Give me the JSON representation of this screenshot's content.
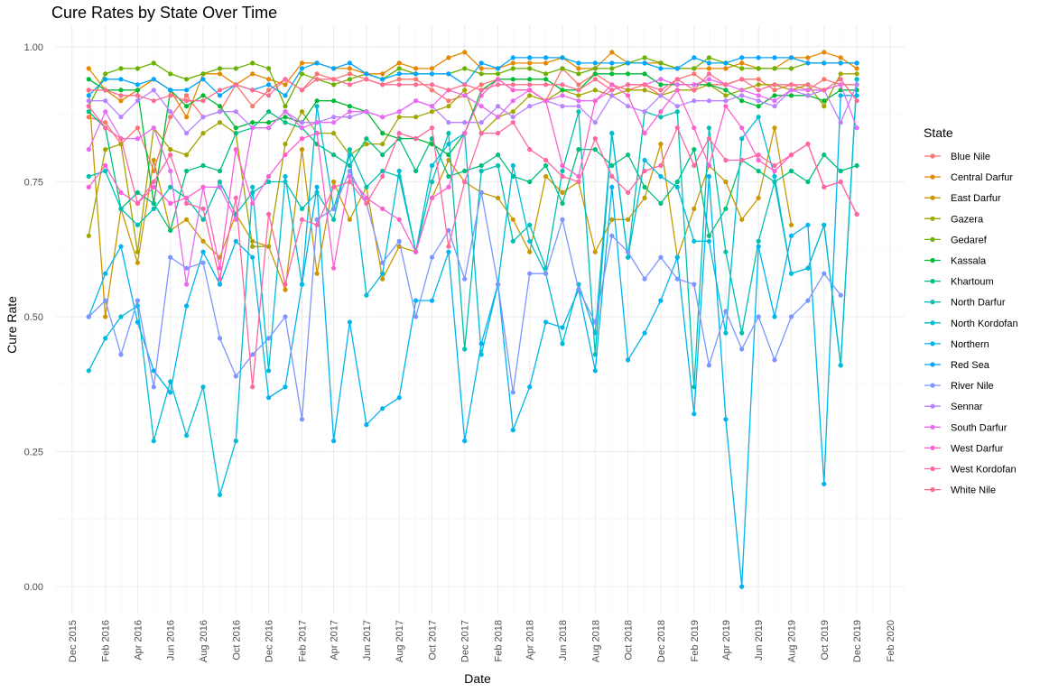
{
  "chart_data": {
    "type": "line",
    "title": "Cure Rates by State Over Time",
    "xlabel": "Date",
    "ylabel": "Cure Rate",
    "ylim": [
      -0.05,
      1.04
    ],
    "y_ticks": [
      "0.00",
      "0.25",
      "0.50",
      "0.75",
      "1.00"
    ],
    "y_tick_values": [
      0,
      0.25,
      0.5,
      0.75,
      1
    ],
    "x_range": [
      "2015-11-01",
      "2020-02-28"
    ],
    "x_ticks": [
      {
        "label": "Dec 2015",
        "date": "2015-12-01"
      },
      {
        "label": "Feb 2016",
        "date": "2016-02-01"
      },
      {
        "label": "Apr 2016",
        "date": "2016-04-01"
      },
      {
        "label": "Jun 2016",
        "date": "2016-06-01"
      },
      {
        "label": "Aug 2016",
        "date": "2016-08-01"
      },
      {
        "label": "Oct 2016",
        "date": "2016-10-01"
      },
      {
        "label": "Dec 2016",
        "date": "2016-12-01"
      },
      {
        "label": "Feb 2017",
        "date": "2017-02-01"
      },
      {
        "label": "Apr 2017",
        "date": "2017-04-01"
      },
      {
        "label": "Jun 2017",
        "date": "2017-06-01"
      },
      {
        "label": "Aug 2017",
        "date": "2017-08-01"
      },
      {
        "label": "Oct 2017",
        "date": "2017-10-01"
      },
      {
        "label": "Dec 2017",
        "date": "2017-12-01"
      },
      {
        "label": "Feb 2018",
        "date": "2018-02-01"
      },
      {
        "label": "Apr 2018",
        "date": "2018-04-01"
      },
      {
        "label": "Jun 2018",
        "date": "2018-06-01"
      },
      {
        "label": "Aug 2018",
        "date": "2018-08-01"
      },
      {
        "label": "Oct 2018",
        "date": "2018-10-01"
      },
      {
        "label": "Dec 2018",
        "date": "2018-12-01"
      },
      {
        "label": "Feb 2019",
        "date": "2019-02-01"
      },
      {
        "label": "Apr 2019",
        "date": "2019-04-01"
      },
      {
        "label": "Jun 2019",
        "date": "2019-06-01"
      },
      {
        "label": "Aug 2019",
        "date": "2019-08-01"
      },
      {
        "label": "Oct 2019",
        "date": "2019-10-01"
      },
      {
        "label": "Dec 2019",
        "date": "2019-12-01"
      },
      {
        "label": "Feb 2020",
        "date": "2020-02-01"
      }
    ],
    "grid": true,
    "legend": {
      "title": "State",
      "position": "right"
    },
    "x": [
      "2016-01-01",
      "2016-02-01",
      "2016-03-01",
      "2016-04-01",
      "2016-05-01",
      "2016-06-01",
      "2016-07-01",
      "2016-08-01",
      "2016-09-01",
      "2016-10-01",
      "2016-11-01",
      "2016-12-01",
      "2017-01-01",
      "2017-02-01",
      "2017-03-01",
      "2017-04-01",
      "2017-05-01",
      "2017-06-01",
      "2017-07-01",
      "2017-08-01",
      "2017-09-01",
      "2017-10-01",
      "2017-11-01",
      "2017-12-01",
      "2018-01-01",
      "2018-02-01",
      "2018-03-01",
      "2018-04-01",
      "2018-05-01",
      "2018-06-01",
      "2018-07-01",
      "2018-08-01",
      "2018-09-01",
      "2018-10-01",
      "2018-11-01",
      "2018-12-01",
      "2019-01-01",
      "2019-02-01",
      "2019-03-01",
      "2019-04-01",
      "2019-05-01",
      "2019-06-01",
      "2019-07-01",
      "2019-08-01",
      "2019-09-01",
      "2019-10-01",
      "2019-11-01",
      "2019-12-01"
    ],
    "series": [
      {
        "name": "Blue Nile",
        "color": "#F8766D",
        "values": [
          0.87,
          0.86,
          0.82,
          0.85,
          0.77,
          0.87,
          0.91,
          0.87,
          0.88,
          0.93,
          0.89,
          0.92,
          0.94,
          0.92,
          0.95,
          0.94,
          0.95,
          0.94,
          0.93,
          0.94,
          0.94,
          0.92,
          0.9,
          0.91,
          0.93,
          0.94,
          0.92,
          0.92,
          0.9,
          0.96,
          0.93,
          0.95,
          0.93,
          0.92,
          0.93,
          0.91,
          0.94,
          0.95,
          0.93,
          0.93,
          0.94,
          0.94,
          0.92,
          0.93,
          0.92,
          0.94,
          0.93,
          0.93
        ]
      },
      {
        "name": "Central Darfur",
        "color": "#E58700",
        "values": [
          0.96,
          0.92,
          0.9,
          0.92,
          0.94,
          0.92,
          0.87,
          0.95,
          0.95,
          0.93,
          0.95,
          0.94,
          0.93,
          0.97,
          0.97,
          0.96,
          0.96,
          0.95,
          0.95,
          0.97,
          0.96,
          0.96,
          0.98,
          0.99,
          0.96,
          0.96,
          0.97,
          0.97,
          0.97,
          0.98,
          0.96,
          0.96,
          0.99,
          0.97,
          0.97,
          0.97,
          0.96,
          0.96,
          0.96,
          0.96,
          0.97,
          0.96,
          0.96,
          0.98,
          0.98,
          0.99,
          0.98,
          0.96
        ]
      },
      {
        "name": "East Darfur",
        "color": "#C99800",
        "values": [
          0.92,
          0.5,
          0.7,
          0.6,
          0.79,
          0.66,
          0.68,
          0.64,
          0.61,
          0.69,
          0.64,
          0.63,
          0.55,
          0.81,
          0.58,
          0.75,
          0.68,
          0.74,
          0.57,
          0.63,
          0.62,
          0.72,
          0.79,
          0.75,
          0.73,
          0.72,
          0.68,
          0.62,
          0.76,
          0.73,
          0.75,
          0.62,
          0.68,
          0.68,
          0.72,
          0.82,
          0.61,
          0.7,
          0.78,
          0.75,
          0.68,
          0.72,
          0.85,
          0.67,
          null,
          null,
          null,
          null
        ]
      },
      {
        "name": "Gazera",
        "color": "#A3A500",
        "values": [
          0.65,
          0.81,
          0.82,
          0.62,
          0.85,
          0.81,
          0.8,
          0.84,
          0.86,
          0.84,
          0.63,
          0.63,
          0.82,
          0.88,
          0.84,
          0.84,
          0.8,
          0.82,
          0.82,
          0.87,
          0.87,
          0.88,
          0.89,
          0.92,
          0.84,
          0.87,
          0.88,
          0.91,
          0.9,
          0.92,
          0.91,
          0.92,
          0.91,
          0.92,
          0.92,
          0.91,
          0.92,
          0.92,
          0.93,
          0.91,
          0.92,
          0.93,
          0.93,
          0.92,
          0.93,
          0.89,
          0.95,
          0.95
        ]
      },
      {
        "name": "Gedaref",
        "color": "#6BB100",
        "values": [
          0.89,
          0.95,
          0.96,
          0.96,
          0.97,
          0.95,
          0.94,
          0.95,
          0.96,
          0.96,
          0.97,
          0.96,
          0.89,
          0.95,
          0.94,
          0.93,
          0.94,
          0.95,
          0.94,
          0.96,
          0.95,
          0.95,
          0.95,
          0.96,
          0.95,
          0.95,
          0.96,
          0.96,
          0.95,
          0.96,
          0.95,
          0.96,
          0.96,
          0.97,
          0.98,
          0.97,
          0.96,
          0.96,
          0.98,
          0.97,
          0.96,
          0.96,
          0.96,
          0.96,
          0.97,
          0.97,
          0.97,
          0.97
        ]
      },
      {
        "name": "Kassala",
        "color": "#00BA38",
        "values": [
          0.94,
          0.92,
          0.92,
          0.92,
          0.71,
          0.92,
          0.89,
          0.91,
          0.89,
          0.85,
          0.86,
          0.86,
          0.87,
          0.86,
          0.9,
          0.9,
          0.89,
          0.88,
          0.84,
          0.83,
          0.83,
          0.82,
          0.8,
          0.84,
          0.92,
          0.94,
          0.94,
          0.94,
          0.94,
          0.92,
          0.92,
          0.95,
          0.95,
          0.95,
          0.95,
          0.93,
          0.93,
          0.93,
          0.93,
          0.92,
          0.9,
          0.89,
          0.91,
          0.91,
          0.91,
          0.9,
          0.92,
          0.92
        ]
      },
      {
        "name": "Khartoum",
        "color": "#00BF7D",
        "values": [
          0.88,
          0.85,
          0.7,
          0.73,
          0.71,
          0.66,
          0.77,
          0.78,
          0.77,
          0.84,
          0.85,
          0.88,
          0.86,
          0.85,
          0.82,
          0.8,
          0.78,
          0.83,
          0.8,
          0.83,
          0.77,
          0.83,
          0.76,
          0.77,
          0.78,
          0.8,
          0.76,
          0.75,
          0.78,
          0.71,
          0.81,
          0.81,
          0.78,
          0.8,
          0.74,
          0.71,
          0.75,
          0.81,
          0.65,
          0.7,
          0.79,
          0.77,
          0.75,
          0.77,
          0.75,
          0.8,
          0.77,
          0.78
        ]
      },
      {
        "name": "North Darfur",
        "color": "#00C0B1",
        "values": [
          0.76,
          0.77,
          0.7,
          0.67,
          0.7,
          0.74,
          0.72,
          0.68,
          0.75,
          0.69,
          0.73,
          0.75,
          0.75,
          0.7,
          0.73,
          0.68,
          0.81,
          0.74,
          0.77,
          0.76,
          0.62,
          0.75,
          0.84,
          0.44,
          0.77,
          0.78,
          0.64,
          0.67,
          0.59,
          0.77,
          0.88,
          0.43,
          0.84,
          0.61,
          0.88,
          0.87,
          0.88,
          0.37,
          0.85,
          0.62,
          0.47,
          0.64,
          0.75,
          0.58,
          0.59,
          0.67,
          0.41,
          0.94
        ]
      },
      {
        "name": "North Kordofan",
        "color": "#00BCD6",
        "values": [
          0.4,
          0.46,
          0.5,
          0.52,
          0.27,
          0.38,
          0.28,
          0.37,
          0.17,
          0.27,
          0.74,
          0.4,
          0.76,
          0.56,
          0.89,
          0.7,
          0.8,
          0.54,
          0.58,
          0.77,
          0.62,
          0.78,
          0.82,
          0.84,
          0.43,
          0.56,
          0.78,
          0.64,
          0.58,
          0.45,
          0.56,
          0.47,
          0.84,
          0.61,
          0.79,
          0.76,
          0.74,
          0.64,
          0.64,
          0.47,
          0.83,
          0.87,
          0.76,
          0.58,
          0.59,
          0.67,
          0.41,
          0.94
        ]
      },
      {
        "name": "Northern",
        "color": "#00B4EF",
        "values": [
          0.5,
          0.58,
          0.63,
          0.49,
          0.4,
          0.36,
          0.52,
          0.62,
          0.56,
          0.64,
          0.61,
          0.35,
          0.37,
          0.56,
          0.74,
          0.27,
          0.49,
          0.3,
          0.33,
          0.35,
          0.53,
          0.53,
          0.62,
          0.27,
          0.45,
          0.56,
          0.29,
          0.37,
          0.49,
          0.48,
          0.55,
          0.4,
          0.74,
          0.42,
          0.47,
          0.53,
          0.61,
          0.32,
          0.76,
          0.31,
          0.0,
          0.63,
          0.5,
          0.65,
          0.67,
          0.19,
          0.91,
          0.91
        ]
      },
      {
        "name": "Red Sea",
        "color": "#00A5FF",
        "values": [
          0.91,
          0.94,
          0.94,
          0.93,
          0.94,
          0.92,
          0.92,
          0.94,
          0.91,
          0.93,
          0.92,
          0.93,
          0.91,
          0.96,
          0.97,
          0.96,
          0.97,
          0.95,
          0.94,
          0.95,
          0.95,
          0.95,
          0.95,
          0.93,
          0.97,
          0.96,
          0.98,
          0.98,
          0.98,
          0.98,
          0.97,
          0.97,
          0.97,
          0.97,
          0.97,
          0.96,
          0.96,
          0.98,
          0.97,
          0.97,
          0.98,
          0.98,
          0.98,
          0.98,
          0.97,
          0.97,
          0.97,
          0.97
        ]
      },
      {
        "name": "River Nile",
        "color": "#7C96FF",
        "values": [
          0.5,
          0.53,
          0.43,
          0.53,
          0.37,
          0.61,
          0.59,
          0.6,
          0.46,
          0.39,
          0.43,
          0.46,
          0.5,
          0.31,
          0.68,
          0.7,
          0.77,
          0.71,
          0.6,
          0.64,
          0.5,
          0.61,
          0.66,
          0.57,
          0.73,
          0.56,
          0.36,
          0.58,
          0.58,
          0.68,
          0.55,
          0.49,
          0.65,
          0.62,
          0.57,
          0.61,
          0.57,
          0.56,
          0.41,
          0.51,
          0.44,
          0.5,
          0.42,
          0.5,
          0.53,
          0.58,
          0.54,
          null
        ]
      },
      {
        "name": "Sennar",
        "color": "#B983FF",
        "values": [
          0.9,
          0.9,
          0.87,
          0.9,
          0.92,
          0.88,
          0.84,
          0.87,
          0.88,
          0.88,
          0.85,
          0.85,
          0.88,
          0.86,
          0.86,
          0.87,
          0.87,
          0.88,
          0.87,
          0.88,
          0.9,
          0.89,
          0.86,
          0.86,
          0.86,
          0.89,
          0.87,
          0.89,
          0.9,
          0.89,
          0.89,
          0.86,
          0.91,
          0.89,
          0.88,
          0.91,
          0.89,
          0.9,
          0.9,
          0.9,
          0.91,
          0.9,
          0.89,
          0.92,
          0.91,
          0.92,
          0.86,
          0.93
        ]
      },
      {
        "name": "South Darfur",
        "color": "#E76BF3",
        "values": [
          0.81,
          0.88,
          0.83,
          0.83,
          0.85,
          0.77,
          0.56,
          0.74,
          0.74,
          0.68,
          0.85,
          0.85,
          0.88,
          0.85,
          0.86,
          0.86,
          0.88,
          0.88,
          0.87,
          0.88,
          0.9,
          0.89,
          0.92,
          0.91,
          0.89,
          0.87,
          0.9,
          0.92,
          0.9,
          0.91,
          0.9,
          0.9,
          0.92,
          0.93,
          0.93,
          0.94,
          0.93,
          0.93,
          0.94,
          0.93,
          0.92,
          0.91,
          0.9,
          0.92,
          0.92,
          0.92,
          0.93,
          0.85
        ]
      },
      {
        "name": "West Darfur",
        "color": "#FD61D1",
        "values": [
          0.74,
          0.78,
          0.73,
          0.71,
          0.74,
          0.71,
          0.72,
          0.74,
          0.59,
          0.81,
          0.71,
          0.76,
          0.8,
          0.83,
          0.84,
          0.59,
          0.76,
          0.72,
          0.7,
          0.68,
          0.62,
          0.72,
          0.74,
          0.84,
          0.91,
          0.94,
          0.92,
          0.92,
          0.9,
          0.78,
          0.76,
          0.9,
          0.93,
          0.91,
          0.84,
          0.88,
          0.92,
          0.85,
          0.78,
          0.89,
          0.85,
          0.79,
          0.77,
          0.8,
          0.82,
          0.74,
          0.75,
          0.69
        ]
      },
      {
        "name": "West Kordofan",
        "color": "#FF67A4",
        "values": [
          0.89,
          0.85,
          0.83,
          0.71,
          0.75,
          0.8,
          0.71,
          0.7,
          0.57,
          0.72,
          0.37,
          0.69,
          0.56,
          0.68,
          0.67,
          0.74,
          0.75,
          0.71,
          0.76,
          0.84,
          0.83,
          0.85,
          0.63,
          0.75,
          0.84,
          0.84,
          0.86,
          0.81,
          0.79,
          0.76,
          0.75,
          0.83,
          0.76,
          0.73,
          0.77,
          0.78,
          0.85,
          0.78,
          0.83,
          0.79,
          0.79,
          0.8,
          0.78,
          0.8,
          0.82,
          0.74,
          0.75,
          0.69
        ]
      },
      {
        "name": "White Nile",
        "color": "#FF6C91",
        "values": [
          0.92,
          0.92,
          0.91,
          0.91,
          0.9,
          0.91,
          0.9,
          0.9,
          0.92,
          0.93,
          0.92,
          0.91,
          0.94,
          0.92,
          0.94,
          0.94,
          0.93,
          0.94,
          0.93,
          0.93,
          0.93,
          0.93,
          0.92,
          0.93,
          0.92,
          0.93,
          0.93,
          0.93,
          0.93,
          0.93,
          0.92,
          0.94,
          0.92,
          0.93,
          0.93,
          0.92,
          0.94,
          0.92,
          0.95,
          0.93,
          0.94,
          0.92,
          0.93,
          0.93,
          0.93,
          0.92,
          0.94,
          0.9
        ]
      }
    ]
  }
}
